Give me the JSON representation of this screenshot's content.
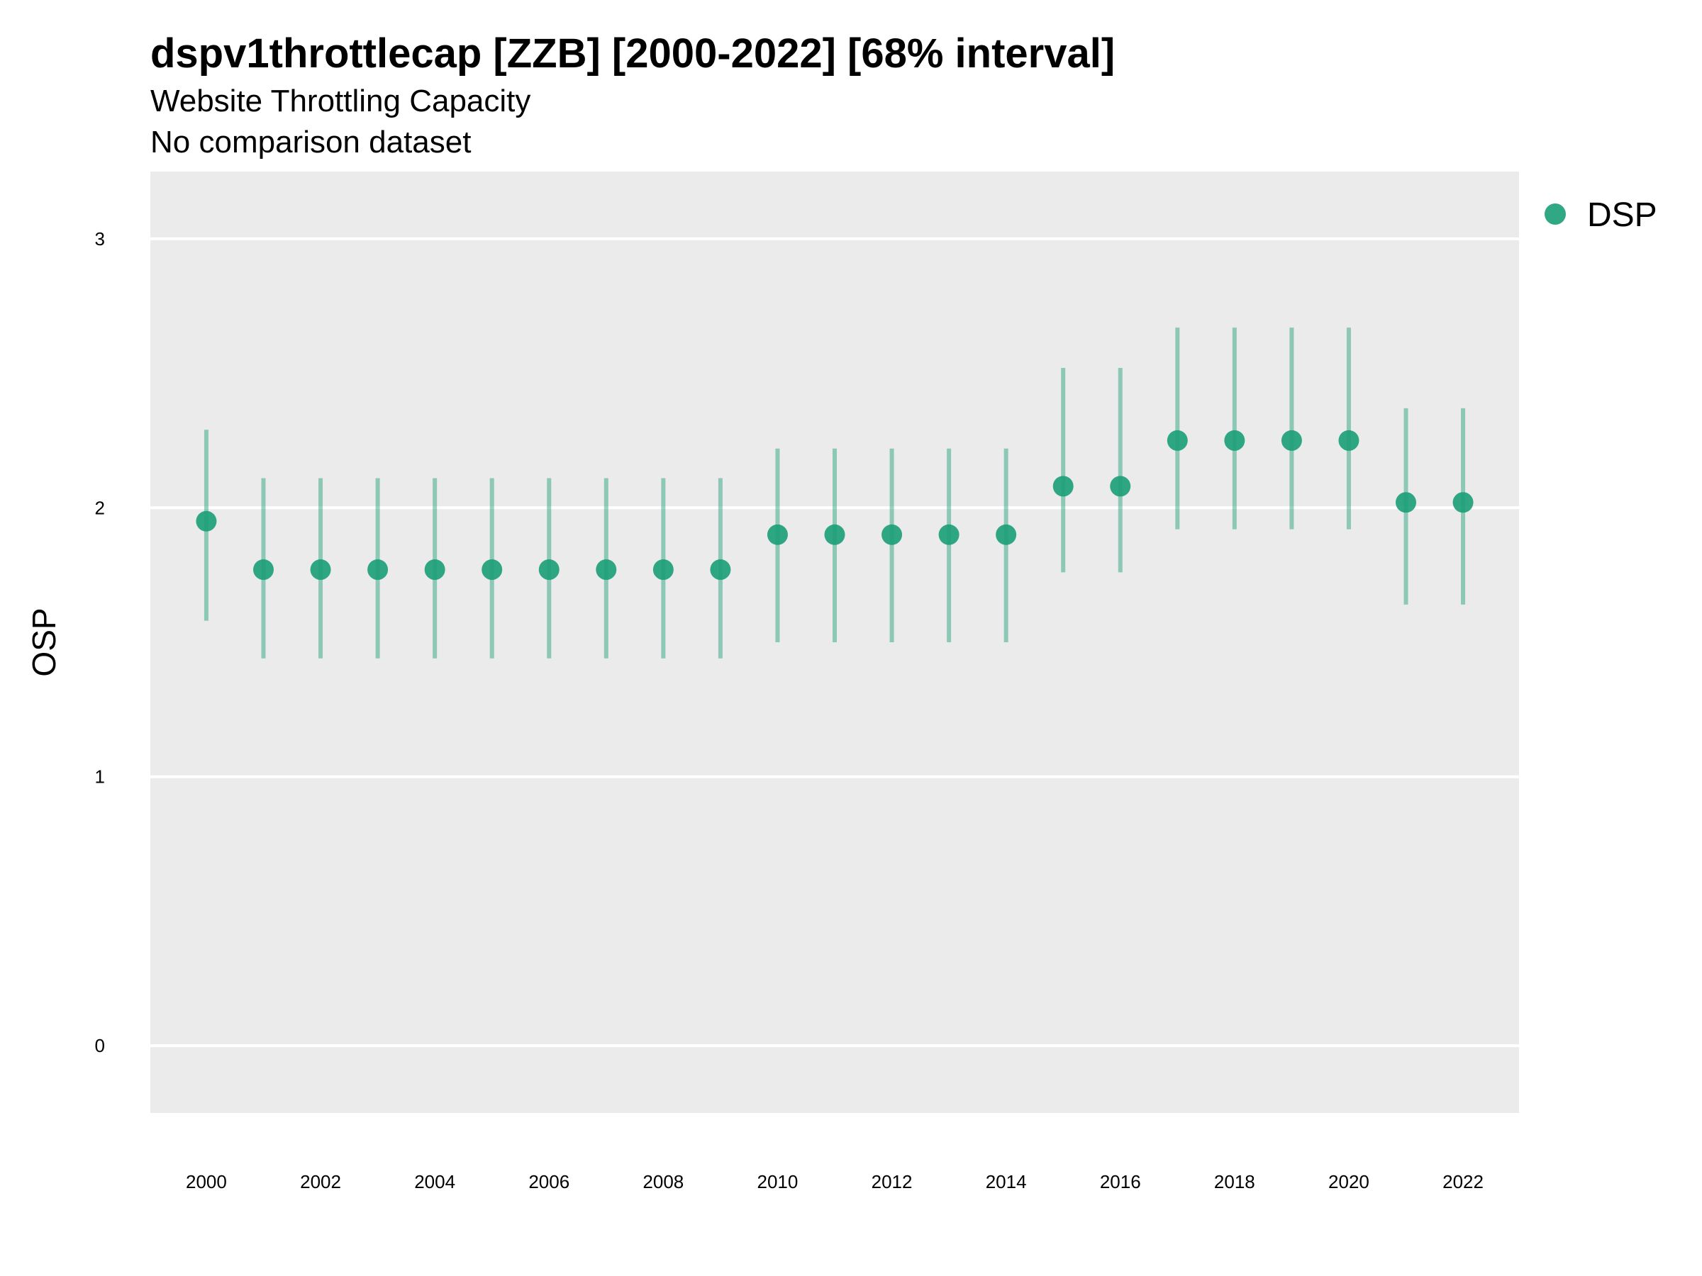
{
  "chart_data": {
    "type": "scatter",
    "title": "dspv1throttlecap [ZZB] [2000-2022] [68% interval]",
    "subtitle": "Website Throttling Capacity",
    "caption": "No comparison dataset",
    "xlabel": "",
    "ylabel": "OSP",
    "xlim": [
      1999.02,
      2022.98
    ],
    "ylim": [
      -0.25,
      3.25
    ],
    "yticks": [
      0,
      1,
      2,
      3
    ],
    "xticks": [
      2000,
      2002,
      2004,
      2006,
      2008,
      2010,
      2012,
      2014,
      2016,
      2018,
      2020,
      2022
    ],
    "grid": true,
    "legend_position": "right",
    "series": [
      {
        "name": "DSP",
        "color": "#1b9e77",
        "x": [
          2000,
          2001,
          2002,
          2003,
          2004,
          2005,
          2006,
          2007,
          2008,
          2009,
          2010,
          2011,
          2012,
          2013,
          2014,
          2015,
          2016,
          2017,
          2018,
          2019,
          2020,
          2021,
          2022
        ],
        "y": [
          1.95,
          1.77,
          1.77,
          1.77,
          1.77,
          1.77,
          1.77,
          1.77,
          1.77,
          1.77,
          1.9,
          1.9,
          1.9,
          1.9,
          1.9,
          2.08,
          2.08,
          2.25,
          2.25,
          2.25,
          2.25,
          2.02,
          2.02
        ],
        "lower": [
          1.58,
          1.44,
          1.44,
          1.44,
          1.44,
          1.44,
          1.44,
          1.44,
          1.44,
          1.44,
          1.5,
          1.5,
          1.5,
          1.5,
          1.5,
          1.76,
          1.76,
          1.92,
          1.92,
          1.92,
          1.92,
          1.64,
          1.64
        ],
        "upper": [
          2.29,
          2.11,
          2.11,
          2.11,
          2.11,
          2.11,
          2.11,
          2.11,
          2.11,
          2.11,
          2.22,
          2.22,
          2.22,
          2.22,
          2.22,
          2.52,
          2.52,
          2.67,
          2.67,
          2.67,
          2.67,
          2.37,
          2.37
        ]
      }
    ]
  },
  "colors": {
    "panel_background": "#ebebeb",
    "grid": "#ffffff",
    "point": "#1b9e77"
  }
}
